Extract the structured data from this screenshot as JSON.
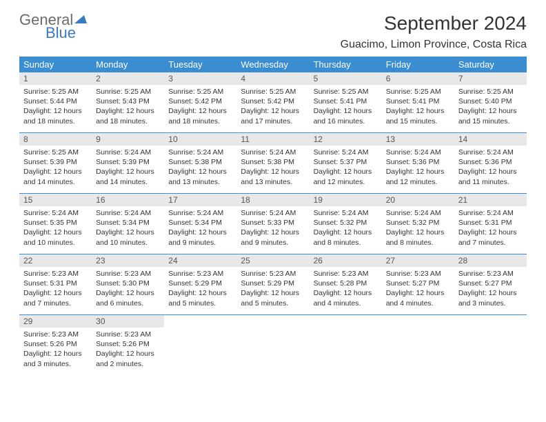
{
  "logo": {
    "word1": "General",
    "word2": "Blue"
  },
  "title": "September 2024",
  "location": "Guacimo, Limon Province, Costa Rica",
  "colors": {
    "header_bg": "#3a8dd0",
    "header_text": "#ffffff",
    "daynum_bg": "#e8e8e8",
    "border": "#3a8dd0",
    "logo_gray": "#6b6b6b",
    "logo_blue": "#3a7bbf"
  },
  "day_headers": [
    "Sunday",
    "Monday",
    "Tuesday",
    "Wednesday",
    "Thursday",
    "Friday",
    "Saturday"
  ],
  "weeks": [
    [
      {
        "n": "1",
        "sr": "5:25 AM",
        "ss": "5:44 PM",
        "dl": "12 hours and 18 minutes."
      },
      {
        "n": "2",
        "sr": "5:25 AM",
        "ss": "5:43 PM",
        "dl": "12 hours and 18 minutes."
      },
      {
        "n": "3",
        "sr": "5:25 AM",
        "ss": "5:42 PM",
        "dl": "12 hours and 18 minutes."
      },
      {
        "n": "4",
        "sr": "5:25 AM",
        "ss": "5:42 PM",
        "dl": "12 hours and 17 minutes."
      },
      {
        "n": "5",
        "sr": "5:25 AM",
        "ss": "5:41 PM",
        "dl": "12 hours and 16 minutes."
      },
      {
        "n": "6",
        "sr": "5:25 AM",
        "ss": "5:41 PM",
        "dl": "12 hours and 15 minutes."
      },
      {
        "n": "7",
        "sr": "5:25 AM",
        "ss": "5:40 PM",
        "dl": "12 hours and 15 minutes."
      }
    ],
    [
      {
        "n": "8",
        "sr": "5:25 AM",
        "ss": "5:39 PM",
        "dl": "12 hours and 14 minutes."
      },
      {
        "n": "9",
        "sr": "5:24 AM",
        "ss": "5:39 PM",
        "dl": "12 hours and 14 minutes."
      },
      {
        "n": "10",
        "sr": "5:24 AM",
        "ss": "5:38 PM",
        "dl": "12 hours and 13 minutes."
      },
      {
        "n": "11",
        "sr": "5:24 AM",
        "ss": "5:38 PM",
        "dl": "12 hours and 13 minutes."
      },
      {
        "n": "12",
        "sr": "5:24 AM",
        "ss": "5:37 PM",
        "dl": "12 hours and 12 minutes."
      },
      {
        "n": "13",
        "sr": "5:24 AM",
        "ss": "5:36 PM",
        "dl": "12 hours and 12 minutes."
      },
      {
        "n": "14",
        "sr": "5:24 AM",
        "ss": "5:36 PM",
        "dl": "12 hours and 11 minutes."
      }
    ],
    [
      {
        "n": "15",
        "sr": "5:24 AM",
        "ss": "5:35 PM",
        "dl": "12 hours and 10 minutes."
      },
      {
        "n": "16",
        "sr": "5:24 AM",
        "ss": "5:34 PM",
        "dl": "12 hours and 10 minutes."
      },
      {
        "n": "17",
        "sr": "5:24 AM",
        "ss": "5:34 PM",
        "dl": "12 hours and 9 minutes."
      },
      {
        "n": "18",
        "sr": "5:24 AM",
        "ss": "5:33 PM",
        "dl": "12 hours and 9 minutes."
      },
      {
        "n": "19",
        "sr": "5:24 AM",
        "ss": "5:32 PM",
        "dl": "12 hours and 8 minutes."
      },
      {
        "n": "20",
        "sr": "5:24 AM",
        "ss": "5:32 PM",
        "dl": "12 hours and 8 minutes."
      },
      {
        "n": "21",
        "sr": "5:24 AM",
        "ss": "5:31 PM",
        "dl": "12 hours and 7 minutes."
      }
    ],
    [
      {
        "n": "22",
        "sr": "5:23 AM",
        "ss": "5:31 PM",
        "dl": "12 hours and 7 minutes."
      },
      {
        "n": "23",
        "sr": "5:23 AM",
        "ss": "5:30 PM",
        "dl": "12 hours and 6 minutes."
      },
      {
        "n": "24",
        "sr": "5:23 AM",
        "ss": "5:29 PM",
        "dl": "12 hours and 5 minutes."
      },
      {
        "n": "25",
        "sr": "5:23 AM",
        "ss": "5:29 PM",
        "dl": "12 hours and 5 minutes."
      },
      {
        "n": "26",
        "sr": "5:23 AM",
        "ss": "5:28 PM",
        "dl": "12 hours and 4 minutes."
      },
      {
        "n": "27",
        "sr": "5:23 AM",
        "ss": "5:27 PM",
        "dl": "12 hours and 4 minutes."
      },
      {
        "n": "28",
        "sr": "5:23 AM",
        "ss": "5:27 PM",
        "dl": "12 hours and 3 minutes."
      }
    ],
    [
      {
        "n": "29",
        "sr": "5:23 AM",
        "ss": "5:26 PM",
        "dl": "12 hours and 3 minutes."
      },
      {
        "n": "30",
        "sr": "5:23 AM",
        "ss": "5:26 PM",
        "dl": "12 hours and 2 minutes."
      },
      null,
      null,
      null,
      null,
      null
    ]
  ],
  "labels": {
    "sunrise": "Sunrise:",
    "sunset": "Sunset:",
    "daylight": "Daylight:"
  }
}
